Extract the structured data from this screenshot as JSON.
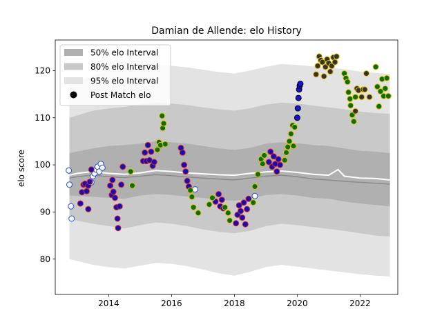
{
  "chart_data": {
    "type": "scatter",
    "title": "Damian de Allende: elo History",
    "xlabel": "",
    "ylabel": "elo score",
    "xlim": [
      2012.3,
      2023.2
    ],
    "ylim": [
      72.5,
      126.5
    ],
    "x_ticks": [
      2014,
      2016,
      2018,
      2020,
      2022
    ],
    "y_ticks": [
      80,
      90,
      100,
      110,
      120
    ],
    "grid": false,
    "legend_position": "top-left",
    "legend": [
      {
        "label": "50% elo Interval",
        "kind": "band",
        "color": "#b0b0b0"
      },
      {
        "label": "80% elo Interval",
        "kind": "band",
        "color": "#c9c9c9"
      },
      {
        "label": "95% elo Interval",
        "kind": "band",
        "color": "#e3e3e3"
      },
      {
        "label": "Post Match elo",
        "kind": "marker",
        "color": "#000000"
      }
    ],
    "bands": {
      "x": [
        2012.75,
        2013.5,
        2014.0,
        2014.5,
        2015.0,
        2015.5,
        2016.0,
        2016.5,
        2017.0,
        2017.5,
        2018.0,
        2018.5,
        2019.0,
        2019.5,
        2020.0,
        2020.5,
        2021.0,
        2021.5,
        2022.0,
        2022.5,
        2022.95
      ],
      "p50_low": [
        93.5,
        93.2,
        93.0,
        92.8,
        93.5,
        93.8,
        93.6,
        93.3,
        93.0,
        92.6,
        92.4,
        92.8,
        93.6,
        93.8,
        93.5,
        93.0,
        92.8,
        92.2,
        91.8,
        91.5,
        91.2
      ],
      "p50_high": [
        102.5,
        103.5,
        104.0,
        104.2,
        104.5,
        105.0,
        104.8,
        104.5,
        104.0,
        103.5,
        103.2,
        103.6,
        104.5,
        104.8,
        104.6,
        104.2,
        104.0,
        103.5,
        103.0,
        102.8,
        102.5
      ],
      "p80_low": [
        88.5,
        87.5,
        87.0,
        86.5,
        87.2,
        87.8,
        87.5,
        87.0,
        86.3,
        85.8,
        85.5,
        86.0,
        87.0,
        87.5,
        87.2,
        86.8,
        86.4,
        86.0,
        85.5,
        85.0,
        84.8
      ],
      "p80_high": [
        110.0,
        111.5,
        112.0,
        112.3,
        112.8,
        113.3,
        113.0,
        112.7,
        112.2,
        111.8,
        111.5,
        112.0,
        112.8,
        113.2,
        113.0,
        112.6,
        112.2,
        111.8,
        111.3,
        111.0,
        110.8
      ],
      "p95_low": [
        80.0,
        78.8,
        78.3,
        78.0,
        78.6,
        79.2,
        79.0,
        78.5,
        77.8,
        77.0,
        76.5,
        77.3,
        78.3,
        78.8,
        78.4,
        78.0,
        77.6,
        77.2,
        76.8,
        76.5,
        76.3
      ],
      "p95_high": [
        117.0,
        119.0,
        119.8,
        120.3,
        120.8,
        121.3,
        121.0,
        120.7,
        120.2,
        119.7,
        119.4,
        120.0,
        120.8,
        121.4,
        121.2,
        120.9,
        120.6,
        120.3,
        119.8,
        119.5,
        119.3
      ]
    },
    "median_line": {
      "x": [
        2012.75,
        2013.0,
        2013.5,
        2014.0,
        2014.5,
        2015.0,
        2015.5,
        2016.0,
        2016.5,
        2017.0,
        2017.5,
        2018.0,
        2018.5,
        2019.0,
        2019.5,
        2020.0,
        2020.5,
        2021.0,
        2021.5,
        2022.0,
        2022.5,
        2022.95
      ],
      "y": [
        97.2,
        97.5,
        97.8,
        97.5,
        97.3,
        97.6,
        97.9,
        97.7,
        97.4,
        97.2,
        97.0,
        96.8,
        97.2,
        97.6,
        97.8,
        97.5,
        97.0,
        96.8,
        96.5,
        96.3,
        96.1,
        95.9
      ]
    },
    "mean_line": {
      "x": [
        2012.75,
        2013.0,
        2013.5,
        2014.0,
        2014.5,
        2015.0,
        2015.5,
        2016.0,
        2016.5,
        2017.0,
        2017.5,
        2018.0,
        2018.5,
        2019.0,
        2019.5,
        2020.0,
        2020.5,
        2021.0,
        2021.3,
        2021.5,
        2022.0,
        2022.5,
        2022.95
      ],
      "y": [
        97.8,
        98.2,
        98.6,
        98.2,
        98.0,
        98.3,
        98.8,
        98.6,
        98.3,
        98.1,
        97.9,
        97.8,
        98.2,
        98.5,
        98.7,
        98.4,
        98.0,
        97.8,
        99.0,
        97.6,
        97.2,
        97.1,
        96.8
      ]
    },
    "series": [
      {
        "edge": "#1f4fd8",
        "fill": "#ffffff",
        "points": [
          [
            2012.73,
            98.8
          ],
          [
            2012.75,
            95.8
          ],
          [
            2012.8,
            91.2
          ],
          [
            2012.82,
            88.6
          ],
          [
            2013.45,
            96.3
          ],
          [
            2013.5,
            97.6
          ],
          [
            2013.55,
            98.2
          ],
          [
            2013.6,
            99.0
          ],
          [
            2013.65,
            99.6
          ],
          [
            2013.7,
            98.6
          ],
          [
            2013.75,
            100.2
          ],
          [
            2013.8,
            99.4
          ],
          [
            2018.65,
            93.4
          ],
          [
            2016.75,
            94.8
          ]
        ]
      },
      {
        "edge": "#e02020",
        "fill": "#1010b8",
        "points": [
          [
            2013.1,
            91.8
          ],
          [
            2013.15,
            94.2
          ],
          [
            2013.2,
            95.8
          ],
          [
            2013.25,
            96.0
          ],
          [
            2013.3,
            94.4
          ],
          [
            2013.35,
            95.6
          ],
          [
            2013.4,
            96.4
          ],
          [
            2013.45,
            99.0
          ],
          [
            2013.35,
            90.6
          ],
          [
            2014.05,
            95.6
          ],
          [
            2014.1,
            93.6
          ],
          [
            2014.12,
            96.8
          ],
          [
            2014.15,
            94.3
          ],
          [
            2014.2,
            93.0
          ],
          [
            2014.25,
            91.0
          ],
          [
            2014.28,
            88.6
          ],
          [
            2014.3,
            86.6
          ],
          [
            2014.35,
            91.2
          ],
          [
            2014.4,
            95.8
          ],
          [
            2014.45,
            99.6
          ],
          [
            2015.1,
            100.8
          ],
          [
            2015.15,
            102.6
          ],
          [
            2015.2,
            100.8
          ],
          [
            2015.25,
            104.2
          ],
          [
            2015.3,
            101.0
          ],
          [
            2015.35,
            102.8
          ],
          [
            2015.4,
            99.8
          ],
          [
            2015.45,
            100.6
          ],
          [
            2016.3,
            103.6
          ],
          [
            2016.35,
            102.6
          ],
          [
            2016.4,
            100.0
          ],
          [
            2016.45,
            98.6
          ],
          [
            2016.5,
            96.6
          ],
          [
            2016.55,
            95.4
          ],
          [
            2017.4,
            92.2
          ],
          [
            2017.5,
            93.8
          ],
          [
            2017.55,
            91.2
          ],
          [
            2017.6,
            92.6
          ],
          [
            2017.65,
            90.8
          ],
          [
            2018.05,
            87.6
          ],
          [
            2018.1,
            89.4
          ],
          [
            2018.15,
            91.4
          ],
          [
            2018.2,
            90.2
          ],
          [
            2018.25,
            88.8
          ],
          [
            2018.3,
            92.0
          ],
          [
            2018.35,
            87.4
          ],
          [
            2018.4,
            90.6
          ],
          [
            2018.45,
            92.8
          ],
          [
            2019.1,
            100.6
          ],
          [
            2019.15,
            102.8
          ],
          [
            2019.2,
            99.6
          ],
          [
            2019.25,
            101.8
          ],
          [
            2019.3,
            100.2
          ],
          [
            2019.35,
            98.6
          ],
          [
            2019.4,
            101.2
          ],
          [
            2019.45,
            100.0
          ]
        ]
      },
      {
        "edge": "#e8c000",
        "fill": "#0a6e0a",
        "points": [
          [
            2014.7,
            98.6
          ],
          [
            2014.75,
            95.6
          ],
          [
            2015.55,
            103.2
          ],
          [
            2015.6,
            104.8
          ],
          [
            2015.65,
            104.2
          ],
          [
            2015.7,
            110.4
          ],
          [
            2015.72,
            107.8
          ],
          [
            2015.75,
            108.8
          ],
          [
            2015.8,
            104.4
          ],
          [
            2016.6,
            94.6
          ],
          [
            2016.65,
            93.2
          ],
          [
            2016.7,
            91.0
          ],
          [
            2016.85,
            89.8
          ],
          [
            2017.2,
            91.6
          ],
          [
            2017.3,
            93.0
          ],
          [
            2017.7,
            91.0
          ],
          [
            2017.8,
            89.8
          ],
          [
            2017.85,
            88.2
          ],
          [
            2018.6,
            92.0
          ],
          [
            2018.65,
            95.4
          ],
          [
            2018.75,
            98.0
          ],
          [
            2018.85,
            101.2
          ],
          [
            2018.9,
            100.2
          ],
          [
            2018.95,
            102.0
          ],
          [
            2019.6,
            101.0
          ],
          [
            2019.65,
            102.6
          ],
          [
            2019.7,
            103.8
          ],
          [
            2019.75,
            105.0
          ],
          [
            2019.8,
            106.6
          ],
          [
            2019.85,
            108.4
          ],
          [
            2019.88,
            104.0
          ],
          [
            2019.92,
            108.0
          ],
          [
            2021.5,
            119.4
          ],
          [
            2021.55,
            118.4
          ],
          [
            2021.6,
            117.6
          ],
          [
            2021.63,
            115.4
          ],
          [
            2021.68,
            114.0
          ],
          [
            2021.7,
            112.6
          ],
          [
            2021.75,
            110.6
          ],
          [
            2021.8,
            109.2
          ],
          [
            2021.85,
            114.4
          ],
          [
            2022.5,
            120.8
          ],
          [
            2022.55,
            116.6
          ],
          [
            2022.6,
            112.4
          ],
          [
            2022.65,
            115.6
          ],
          [
            2022.7,
            118.2
          ],
          [
            2022.75,
            114.6
          ],
          [
            2022.8,
            116.2
          ],
          [
            2022.85,
            118.4
          ],
          [
            2022.9,
            114.6
          ]
        ]
      },
      {
        "edge": "#000000",
        "fill": "#1414d8",
        "points": [
          [
            2020.0,
            110.0
          ],
          [
            2020.02,
            112.0
          ],
          [
            2020.04,
            114.2
          ],
          [
            2020.06,
            116.0
          ],
          [
            2020.08,
            116.8
          ],
          [
            2020.1,
            117.2
          ]
        ]
      },
      {
        "edge": "#e8c000",
        "fill": "#333333",
        "points": [
          [
            2020.6,
            119.2
          ],
          [
            2020.65,
            121.0
          ],
          [
            2020.7,
            123.0
          ],
          [
            2020.75,
            122.2
          ],
          [
            2020.8,
            121.8
          ],
          [
            2020.85,
            118.8
          ],
          [
            2020.9,
            120.8
          ],
          [
            2020.95,
            122.4
          ],
          [
            2021.0,
            121.6
          ],
          [
            2021.05,
            119.8
          ],
          [
            2021.1,
            121.0
          ],
          [
            2021.15,
            122.8
          ],
          [
            2021.2,
            121.8
          ],
          [
            2021.25,
            123.0
          ],
          [
            2021.85,
            111.4
          ],
          [
            2021.9,
            116.2
          ],
          [
            2021.95,
            115.8
          ],
          [
            2022.05,
            114.4
          ],
          [
            2022.1,
            116.0
          ],
          [
            2022.15,
            116.0
          ],
          [
            2022.2,
            119.4
          ],
          [
            2022.3,
            114.4
          ]
        ]
      }
    ]
  }
}
